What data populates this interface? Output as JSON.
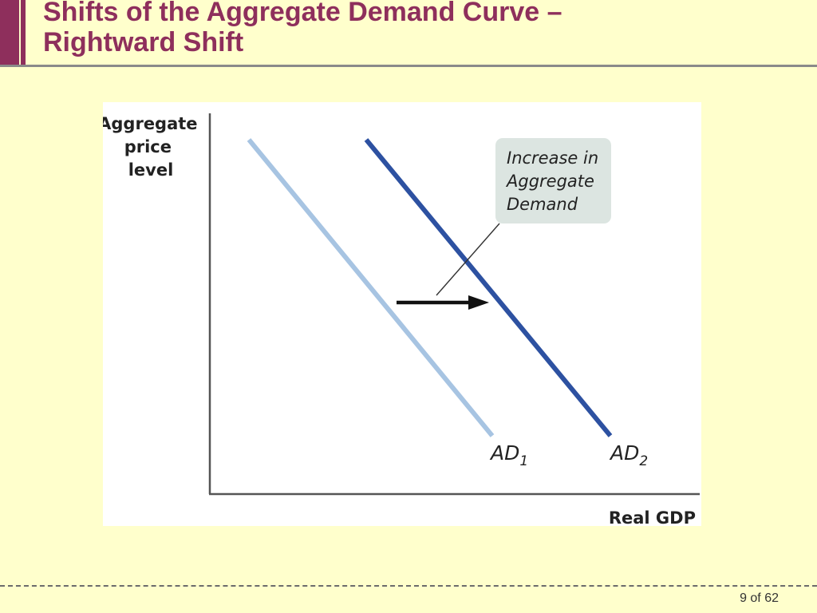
{
  "slide": {
    "title_line1": "Shifts of the Aggregate Demand Curve –",
    "title_line2": "Rightward Shift",
    "page_number": "9 of 62",
    "colors": {
      "background": "#FFFFCC",
      "accent": "#8E2F5C",
      "rule": "#8A8A8A"
    }
  },
  "diagram": {
    "y_axis_label_lines": [
      "Aggregate",
      "price",
      "level"
    ],
    "x_axis_label": "Real GDP",
    "callout_lines": [
      "Increase in",
      "Aggregate",
      "Demand"
    ],
    "curves": [
      {
        "label": "AD",
        "subscript": "1",
        "color": "#A7C4E2"
      },
      {
        "label": "AD",
        "subscript": "2",
        "color": "#2D51A1"
      }
    ],
    "shift_arrow": {
      "direction": "rightward"
    },
    "colors": {
      "callout_fill": "#DCE5E1",
      "axis": "#555555",
      "text": "#222222"
    }
  }
}
